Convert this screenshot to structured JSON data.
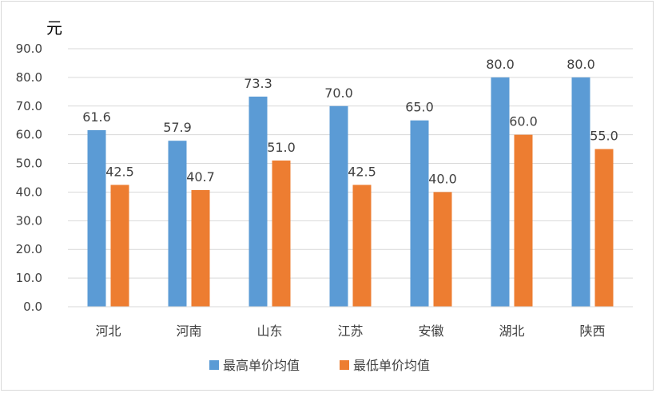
{
  "chart_data": {
    "type": "bar",
    "unit_label": "元",
    "categories": [
      "河北",
      "河南",
      "山东",
      "江苏",
      "安徽",
      "湖北",
      "陕西"
    ],
    "series": [
      {
        "name": "最高单价均值",
        "color": "#5b9bd5",
        "values": [
          61.6,
          57.9,
          73.3,
          70.0,
          65.0,
          80.0,
          80.0
        ]
      },
      {
        "name": "最低单价均值",
        "color": "#ed7d31",
        "values": [
          42.5,
          40.7,
          51.0,
          42.5,
          40.0,
          60.0,
          55.0
        ]
      }
    ],
    "ylim": [
      0,
      90
    ],
    "yticks": [
      "0.0",
      "10.0",
      "20.0",
      "30.0",
      "40.0",
      "50.0",
      "60.0",
      "70.0",
      "80.0",
      "90.0"
    ],
    "grid": true,
    "legend_position": "bottom"
  }
}
